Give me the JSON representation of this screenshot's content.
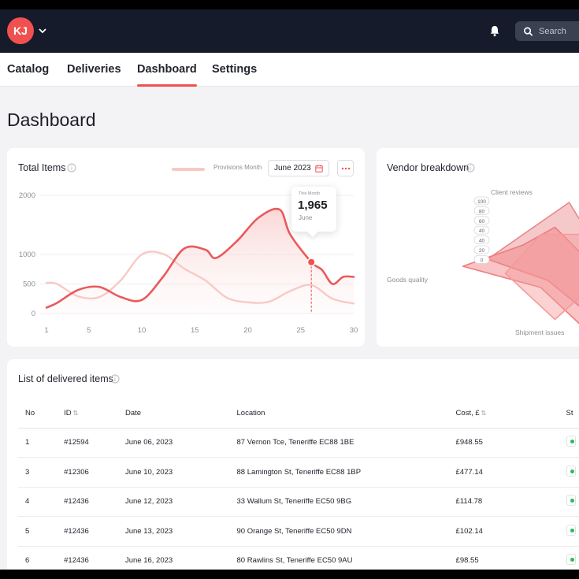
{
  "header": {
    "avatar_initials": "KJ",
    "search_placeholder": "Search"
  },
  "nav": {
    "tabs": [
      {
        "label": "Catalog"
      },
      {
        "label": "Deliveries"
      },
      {
        "label": "Dashboard",
        "active": true
      },
      {
        "label": "Settings"
      }
    ]
  },
  "page": {
    "title": "Dashboard"
  },
  "total_items": {
    "title": "Total Items",
    "legend_label": "Provisions Month",
    "date_label": "June 2023",
    "tooltip": {
      "label": "This Month",
      "value": "1,965",
      "sub": "June"
    }
  },
  "vendor": {
    "title": "Vendor breakdown"
  },
  "chart_data": [
    {
      "type": "line",
      "title": "Total Items",
      "x_ticks": [
        1,
        5,
        10,
        15,
        20,
        25,
        30
      ],
      "y_ticks": [
        0,
        500,
        1000,
        2000
      ],
      "ylim": [
        0,
        2000
      ],
      "xlim": [
        1,
        30
      ],
      "grid": true,
      "series": [
        {
          "name": "Provisions Month",
          "color": "#f8c9c6",
          "x": [
            1,
            2,
            4,
            6,
            8,
            10,
            12,
            14,
            16,
            18,
            20,
            22,
            24,
            26,
            28,
            30
          ],
          "y": [
            520,
            500,
            290,
            280,
            560,
            1000,
            1010,
            760,
            560,
            270,
            190,
            200,
            380,
            480,
            250,
            170
          ]
        },
        {
          "color": "#e95a5d",
          "x": [
            1,
            2,
            4,
            6,
            8,
            10,
            12,
            14,
            16,
            17,
            19,
            21,
            23,
            24,
            26,
            27,
            28,
            29,
            30
          ],
          "y": [
            100,
            180,
            400,
            450,
            280,
            230,
            620,
            1100,
            1080,
            940,
            1230,
            1620,
            1760,
            1340,
            870,
            740,
            500,
            620,
            620
          ]
        }
      ],
      "highlight": {
        "x": 26,
        "y": 870
      }
    },
    {
      "type": "radar",
      "title": "Vendor breakdown",
      "axis_labels": [
        "Client reviews",
        "Goods quality",
        "Shipment issues"
      ],
      "radial_ticks": [
        100,
        80,
        60,
        40,
        40,
        20,
        0
      ],
      "series": [
        {
          "color": "#e8888a",
          "points": [
            [
              0.55,
              -0.9
            ],
            [
              0.95,
              -0.25
            ],
            [
              0.8,
              0.65
            ],
            [
              0.25,
              0.2
            ],
            [
              -0.6,
              -0.1
            ]
          ]
        },
        {
          "color": "#f07c7e",
          "points": [
            [
              0.35,
              -0.55
            ],
            [
              1.1,
              0.2
            ],
            [
              0.95,
              1.05
            ],
            [
              0.15,
              0.3
            ],
            [
              -0.95,
              0.0
            ],
            [
              -0.1,
              -0.3
            ]
          ]
        },
        {
          "color": "#f39b9b",
          "points": [
            [
              0.15,
              -0.45
            ],
            [
              0.95,
              -0.45
            ],
            [
              0.85,
              0.3
            ],
            [
              0.35,
              0.75
            ],
            [
              -0.35,
              0.1
            ]
          ]
        }
      ]
    }
  ],
  "table": {
    "title": "List of delivered items",
    "columns": [
      "No",
      "ID",
      "Date",
      "Location",
      "Cost, £",
      "St"
    ],
    "rows": [
      {
        "no": "1",
        "id": "#12594",
        "date": "June 06, 2023",
        "location": "87 Vernon Tce, Teneriffe EC88 1BE",
        "cost": "£948.55"
      },
      {
        "no": "3",
        "id": "#12306",
        "date": "June 10, 2023",
        "location": "88 Lamington St, Teneriffe EC88 1BP",
        "cost": "£477.14"
      },
      {
        "no": "4",
        "id": "#12436",
        "date": "June 12, 2023",
        "location": "33 Wallum St, Teneriffe EC50 9BG",
        "cost": "£114.78"
      },
      {
        "no": "5",
        "id": "#12436",
        "date": "June 13, 2023",
        "location": "90 Orange St, Teneriffe EC50 9DN",
        "cost": "£102.14"
      },
      {
        "no": "6",
        "id": "#12436",
        "date": "June 16, 2023",
        "location": "80 Rawlins St, Teneriffe EC50 9AU",
        "cost": "£98.55"
      }
    ]
  }
}
